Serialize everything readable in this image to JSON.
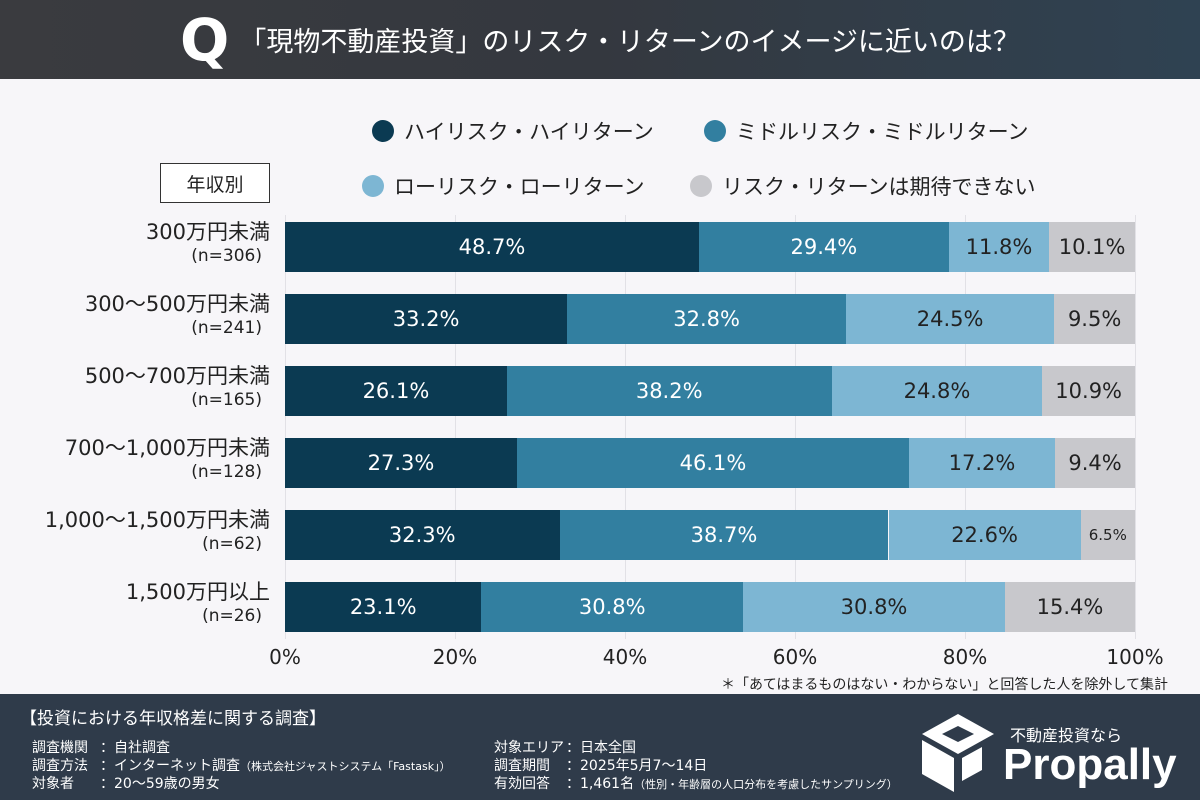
{
  "header": {
    "q": "Q",
    "title": "「現物不動産投資」のリスク・リターンのイメージに近いのは？"
  },
  "group_label": "年収別",
  "chart_data": {
    "type": "bar",
    "orientation": "horizontal-stacked-100",
    "categories": [
      "300万円未満",
      "300〜500万円未満",
      "500〜700万円未満",
      "700〜1,000万円未満",
      "1,000〜1,500万円未満",
      "1,500万円以上"
    ],
    "sample_sizes": [
      "(n=306)",
      "(n=241)",
      "(n=165)",
      "(n=128)",
      "(n=62)",
      "(n=26)"
    ],
    "series": [
      {
        "name": "ハイリスク・ハイリターン",
        "color": "#0b3a52",
        "values": [
          48.7,
          33.2,
          26.1,
          27.3,
          32.3,
          23.1
        ]
      },
      {
        "name": "ミドルリスク・ミドルリターン",
        "color": "#327fa0",
        "values": [
          29.4,
          32.8,
          38.2,
          46.1,
          38.7,
          30.8
        ]
      },
      {
        "name": "ローリスク・ローリターン",
        "color": "#7db6d3",
        "values": [
          11.8,
          24.5,
          24.8,
          17.2,
          22.6,
          30.8
        ]
      },
      {
        "name": "リスク・リターンは期待できない",
        "color": "#c8c8cc",
        "values": [
          10.1,
          9.5,
          10.9,
          9.4,
          6.5,
          15.4
        ]
      }
    ],
    "xlim": [
      0,
      100
    ],
    "xticks": [
      "0%",
      "20%",
      "40%",
      "60%",
      "80%",
      "100%"
    ],
    "grid": true,
    "legend": "top"
  },
  "note": "＊「あてはまるものはない・わからない」と回答した人を除外して集計",
  "footer": {
    "title": "【投資における年収格差に関する調査】",
    "rows": [
      {
        "label": "調査機関",
        "value": "：自社調査",
        "extra": ""
      },
      {
        "label": "調査方法",
        "value": "：インターネット調査",
        "extra": "（株式会社ジャストシステム「Fastask」）"
      },
      {
        "label": "対象者",
        "value": "：20〜59歳の男女",
        "extra": ""
      },
      {
        "label": "対象エリア",
        "value": "：日本全国",
        "extra": ""
      },
      {
        "label": "調査期間",
        "value": "：2025年5月7〜14日",
        "extra": ""
      },
      {
        "label": "有効回答",
        "value": "：1,461名",
        "extra": "（性別・年齢層の人口分布を考慮したサンプリング）"
      }
    ],
    "logo_sub": "不動産投資なら",
    "logo_name": "Propally"
  }
}
